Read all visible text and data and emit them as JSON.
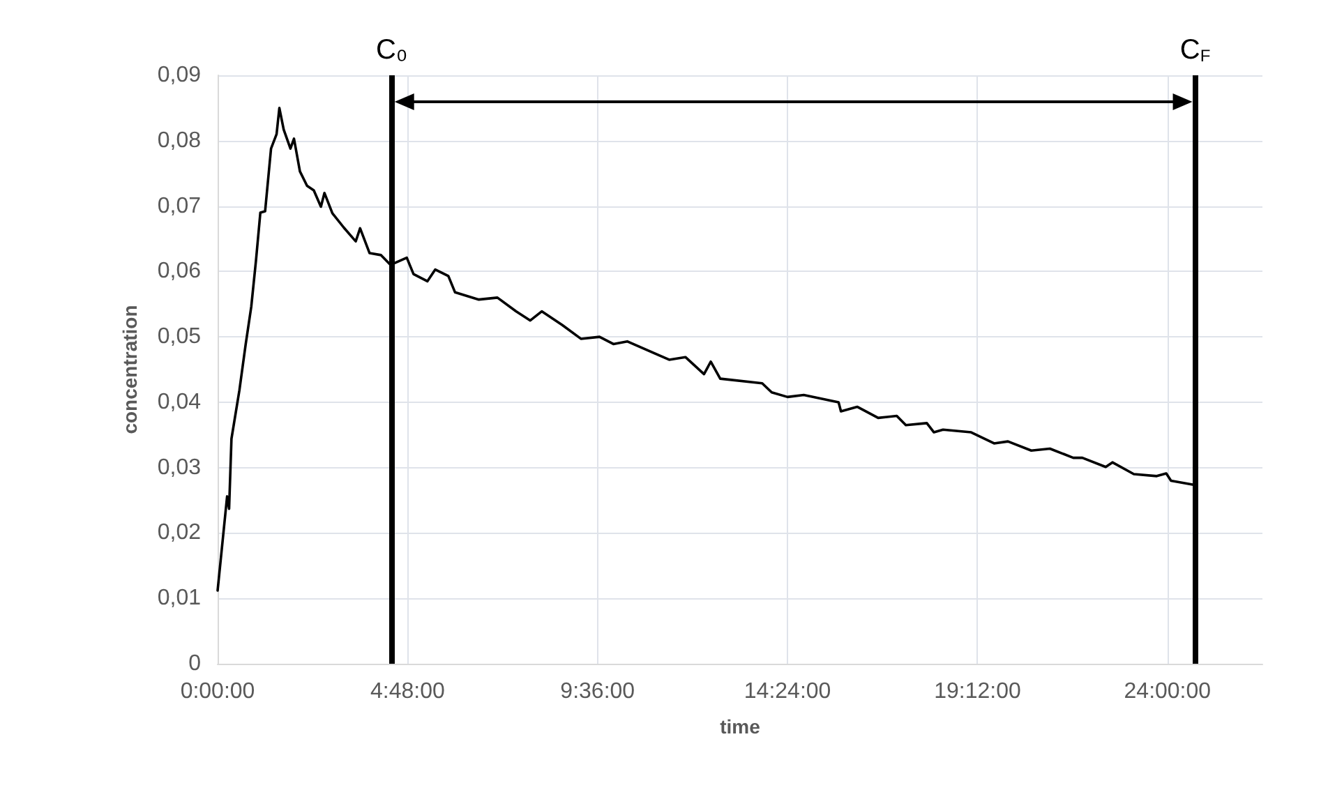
{
  "chart_data": {
    "type": "line",
    "xlabel": "time",
    "ylabel": "concentration",
    "x": [
      0,
      0.24,
      0.29,
      0.35,
      0.55,
      0.71,
      0.85,
      0.97,
      1.08,
      1.2,
      1.35,
      1.49,
      1.56,
      1.67,
      1.84,
      1.93,
      2.08,
      2.26,
      2.43,
      2.61,
      2.7,
      2.9,
      3.19,
      3.49,
      3.6,
      3.84,
      4.13,
      4.37,
      4.78,
      4.95,
      5.3,
      5.5,
      5.83,
      6.0,
      6.6,
      7.07,
      7.54,
      7.9,
      8.19,
      8.71,
      9.18,
      9.65,
      10.0,
      10.35,
      11.41,
      11.82,
      12.29,
      12.46,
      12.7,
      13.76,
      14.0,
      14.4,
      14.81,
      15.69,
      15.75,
      16.16,
      16.69,
      17.16,
      17.39,
      17.92,
      18.1,
      18.33,
      19.04,
      19.62,
      19.97,
      20.56,
      21.03,
      21.62,
      21.85,
      22.44,
      22.61,
      23.15,
      23.73,
      23.97,
      24.09,
      24.73
    ],
    "series": [
      {
        "color": "#000000",
        "values": [
          0.0112,
          0.0256,
          0.0237,
          0.0344,
          0.0418,
          0.0489,
          0.0546,
          0.0617,
          0.069,
          0.0692,
          0.0788,
          0.081,
          0.085,
          0.0817,
          0.0788,
          0.0803,
          0.0753,
          0.0731,
          0.0724,
          0.0699,
          0.072,
          0.0689,
          0.0667,
          0.0646,
          0.0666,
          0.0628,
          0.0625,
          0.061,
          0.0621,
          0.0596,
          0.0585,
          0.0603,
          0.0593,
          0.0568,
          0.0557,
          0.056,
          0.0539,
          0.0525,
          0.0539,
          0.0518,
          0.0497,
          0.05,
          0.0489,
          0.0493,
          0.0465,
          0.0469,
          0.0443,
          0.0462,
          0.0436,
          0.0429,
          0.0415,
          0.0408,
          0.0411,
          0.04,
          0.0386,
          0.0393,
          0.0376,
          0.0379,
          0.0365,
          0.0368,
          0.0354,
          0.0358,
          0.0354,
          0.0337,
          0.034,
          0.0326,
          0.0329,
          0.0315,
          0.0315,
          0.0301,
          0.0308,
          0.029,
          0.0287,
          0.0291,
          0.028,
          0.0273
        ]
      }
    ],
    "xlim": [
      0,
      26.4
    ],
    "xticks": [
      {
        "value": 0,
        "label": "0:00:00"
      },
      {
        "value": 4.8,
        "label": "4:48:00"
      },
      {
        "value": 9.6,
        "label": "9:36:00"
      },
      {
        "value": 14.4,
        "label": "14:24:00"
      },
      {
        "value": 19.2,
        "label": "19:12:00"
      },
      {
        "value": 24,
        "label": "24:00:00"
      }
    ],
    "ylim": [
      0,
      0.09
    ],
    "yticks": [
      0,
      {
        "value": 0.01,
        "label": "0,01"
      },
      {
        "value": 0.02,
        "label": "0,02"
      },
      {
        "value": 0.03,
        "label": "0,03"
      },
      {
        "value": 0.04,
        "label": "0,04"
      },
      {
        "value": 0.05,
        "label": "0,05"
      },
      {
        "value": 0.06,
        "label": "0,06"
      },
      {
        "value": 0.07,
        "label": "0,07"
      },
      {
        "value": 0.08,
        "label": "0,08"
      },
      {
        "value": 0.09,
        "label": "0,09"
      }
    ],
    "ref_lines": [
      {
        "axis": "x",
        "value": 4.4,
        "label": "C₀",
        "color": "#000000"
      },
      {
        "axis": "x",
        "value": 24.7,
        "label": "C$_{F}$",
        "color": "#000000"
      }
    ],
    "grid": true,
    "marker": "none",
    "line_style": "solid"
  }
}
